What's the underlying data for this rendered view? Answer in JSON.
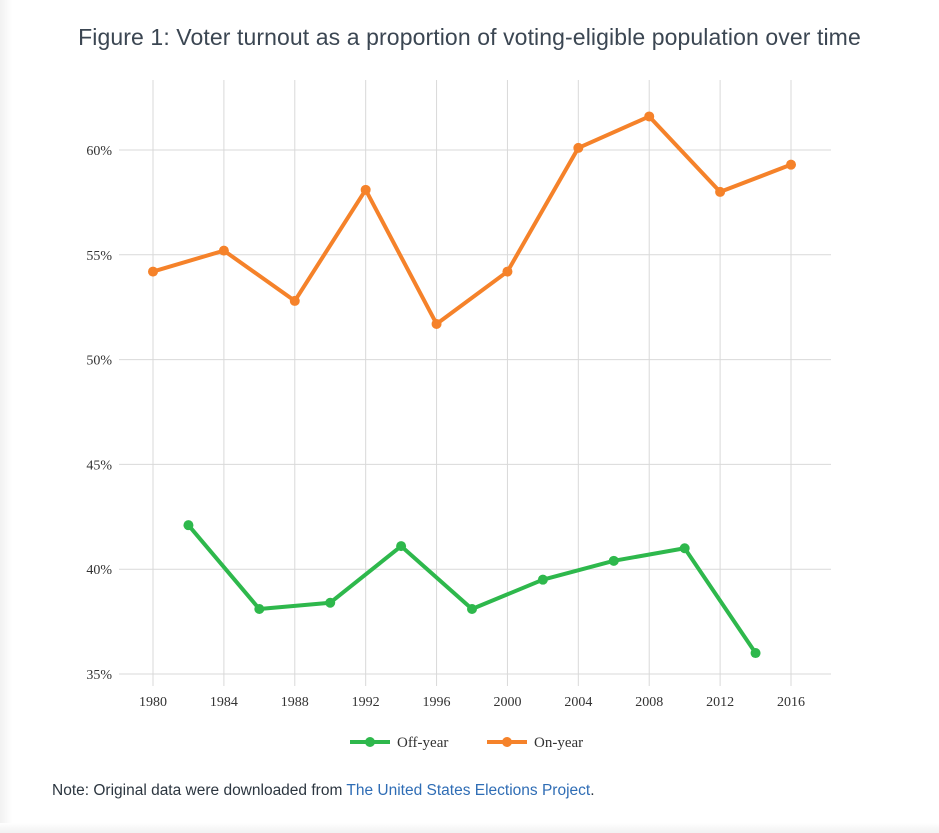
{
  "figure": {
    "title": "Figure 1: Voter turnout as a proportion of voting-eligible population over time"
  },
  "note": {
    "prefix": "Note: Original data were downloaded from ",
    "link_text": "The United States Elections Project",
    "suffix": "."
  },
  "chart_data": {
    "type": "line",
    "title": "",
    "xlabel": "",
    "ylabel": "",
    "x_ticks": [
      "1980",
      "1984",
      "1988",
      "1992",
      "1996",
      "2000",
      "2004",
      "2008",
      "2012",
      "2016"
    ],
    "y_ticks": [
      "35%",
      "40%",
      "45%",
      "50%",
      "55%",
      "60%"
    ],
    "xlim": [
      1980,
      2016
    ],
    "ylim": [
      35,
      63
    ],
    "grid": true,
    "legend_position": "bottom-center",
    "series": [
      {
        "name": "Off-year",
        "color": "#2eb84c",
        "x": [
          1982,
          1986,
          1990,
          1994,
          1998,
          2002,
          2006,
          2010,
          2014
        ],
        "y": [
          42.1,
          38.1,
          38.4,
          41.1,
          38.1,
          39.5,
          40.4,
          41.0,
          36.0
        ]
      },
      {
        "name": "On-year",
        "color": "#f5822a",
        "x": [
          1980,
          1984,
          1988,
          1992,
          1996,
          2000,
          2004,
          2008,
          2012,
          2016
        ],
        "y": [
          54.2,
          55.2,
          52.8,
          58.1,
          51.7,
          54.2,
          60.1,
          61.6,
          58.0,
          59.3
        ]
      }
    ]
  }
}
